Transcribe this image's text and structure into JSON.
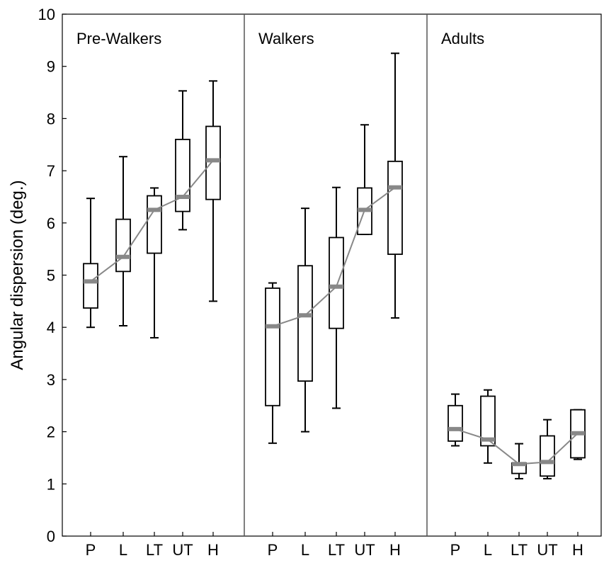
{
  "chart_data": {
    "type": "box",
    "ylabel": "Angular dispersion (deg.)",
    "ylim": [
      0,
      10
    ],
    "yticks": [
      0,
      1,
      2,
      3,
      4,
      5,
      6,
      7,
      8,
      9,
      10
    ],
    "grid": false,
    "categories": [
      "P",
      "L",
      "LT",
      "UT",
      "H"
    ],
    "panels": [
      {
        "name": "Pre-Walkers",
        "boxes": [
          {
            "category": "P",
            "whisker_low": 4.0,
            "q1": 4.37,
            "median": 4.88,
            "q3": 5.22,
            "whisker_high": 6.47
          },
          {
            "category": "L",
            "whisker_low": 4.03,
            "q1": 5.07,
            "median": 5.35,
            "q3": 6.07,
            "whisker_high": 7.27
          },
          {
            "category": "LT",
            "whisker_low": 3.8,
            "q1": 5.42,
            "median": 6.25,
            "q3": 6.52,
            "whisker_high": 6.67
          },
          {
            "category": "UT",
            "whisker_low": 5.87,
            "q1": 6.22,
            "median": 6.5,
            "q3": 7.6,
            "whisker_high": 8.53
          },
          {
            "category": "H",
            "whisker_low": 4.5,
            "q1": 6.45,
            "median": 7.2,
            "q3": 7.85,
            "whisker_high": 8.72
          }
        ]
      },
      {
        "name": "Walkers",
        "boxes": [
          {
            "category": "P",
            "whisker_low": 1.78,
            "q1": 2.5,
            "median": 4.02,
            "q3": 4.75,
            "whisker_high": 4.85
          },
          {
            "category": "L",
            "whisker_low": 2.0,
            "q1": 2.97,
            "median": 4.23,
            "q3": 5.18,
            "whisker_high": 6.28
          },
          {
            "category": "LT",
            "whisker_low": 2.45,
            "q1": 3.98,
            "median": 4.78,
            "q3": 5.72,
            "whisker_high": 6.68
          },
          {
            "category": "UT",
            "whisker_low": 5.78,
            "q1": 5.78,
            "median": 6.25,
            "q3": 6.67,
            "whisker_high": 7.88
          },
          {
            "category": "H",
            "whisker_low": 4.18,
            "q1": 5.4,
            "median": 6.68,
            "q3": 7.18,
            "whisker_high": 9.25
          }
        ]
      },
      {
        "name": "Adults",
        "boxes": [
          {
            "category": "P",
            "whisker_low": 1.73,
            "q1": 1.82,
            "median": 2.05,
            "q3": 2.5,
            "whisker_high": 2.72
          },
          {
            "category": "L",
            "whisker_low": 1.4,
            "q1": 1.73,
            "median": 1.85,
            "q3": 2.68,
            "whisker_high": 2.8
          },
          {
            "category": "LT",
            "whisker_low": 1.1,
            "q1": 1.2,
            "median": 1.38,
            "q3": 1.4,
            "whisker_high": 1.77
          },
          {
            "category": "UT",
            "whisker_low": 1.1,
            "q1": 1.15,
            "median": 1.42,
            "q3": 1.92,
            "whisker_high": 2.23
          },
          {
            "category": "H",
            "whisker_low": 1.47,
            "q1": 1.5,
            "median": 1.97,
            "q3": 2.42,
            "whisker_high": 2.42
          }
        ]
      }
    ],
    "colors": {
      "box": "#000000",
      "median": "#888888",
      "median_line": "#888888"
    }
  }
}
